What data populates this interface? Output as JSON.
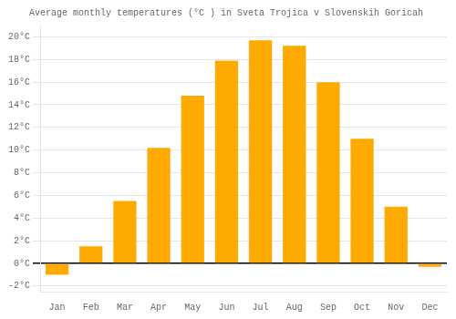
{
  "chart_data": {
    "type": "bar",
    "title": "Average monthly temperatures (°C ) in Sveta Trojica v Slovenskih Goricah",
    "categories": [
      "Jan",
      "Feb",
      "Mar",
      "Apr",
      "May",
      "Jun",
      "Jul",
      "Aug",
      "Sep",
      "Oct",
      "Nov",
      "Dec"
    ],
    "values": [
      -1.0,
      1.5,
      5.5,
      10.2,
      14.8,
      17.9,
      19.7,
      19.2,
      16.0,
      11.0,
      5.0,
      -0.3
    ],
    "color": "#FFAA00",
    "ylim": [
      -2.5,
      21.0
    ],
    "yticks": [
      {
        "value": -2,
        "label": "-2°C"
      },
      {
        "value": 0,
        "label": "0°C"
      },
      {
        "value": 2,
        "label": "2°C"
      },
      {
        "value": 4,
        "label": "4°C"
      },
      {
        "value": 6,
        "label": "6°C"
      },
      {
        "value": 8,
        "label": "8°C"
      },
      {
        "value": 10,
        "label": "10°C"
      },
      {
        "value": 12,
        "label": "12°C"
      },
      {
        "value": 14,
        "label": "14°C"
      },
      {
        "value": 16,
        "label": "16°C"
      },
      {
        "value": 18,
        "label": "18°C"
      },
      {
        "value": 20,
        "label": "20°C"
      }
    ],
    "grid": true
  }
}
